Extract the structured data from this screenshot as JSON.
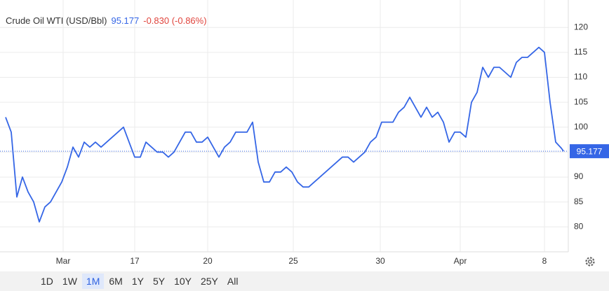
{
  "chart_data": {
    "type": "line",
    "title": "Crude Oil WTI (USD/Bbl)",
    "last_price": 95.177,
    "change_text": "-0.830 (-0.86%)",
    "color": "#3566e6",
    "x": [
      1,
      2,
      3,
      4,
      5,
      6,
      7,
      8,
      9,
      10,
      11,
      12,
      13,
      14,
      15,
      16,
      17,
      18,
      19,
      20,
      21,
      22,
      23,
      24,
      25,
      26,
      27,
      28,
      29,
      30,
      31,
      32,
      33,
      34,
      35,
      36,
      37,
      38,
      39,
      40,
      41,
      42,
      43,
      44,
      45,
      46,
      47,
      48,
      49,
      50,
      51,
      52,
      53,
      54,
      55,
      56,
      57,
      58,
      59,
      60,
      61,
      62,
      63,
      64,
      65,
      66,
      67,
      68,
      69,
      70,
      71,
      72,
      73,
      74,
      75,
      76,
      77,
      78,
      79,
      80,
      81,
      82,
      83,
      84,
      85,
      86,
      87,
      88,
      89,
      90,
      91,
      92,
      93,
      94,
      95,
      96,
      97,
      98,
      99,
      100,
      100.4
    ],
    "values": [
      102,
      99,
      86,
      90,
      87,
      85,
      81,
      84,
      85,
      87,
      89,
      92,
      96,
      94,
      97,
      96,
      97,
      96,
      97,
      98,
      99,
      100,
      97,
      94,
      94,
      97,
      96,
      95,
      95,
      94,
      95,
      97,
      99,
      99,
      97,
      97,
      98,
      96,
      94,
      96,
      97,
      99,
      99,
      99,
      101,
      93,
      89,
      89,
      91,
      91,
      92,
      91,
      89,
      88,
      88,
      89,
      90,
      91,
      92,
      93,
      94,
      94,
      93,
      94,
      95,
      97,
      98,
      101,
      101,
      101,
      103,
      104,
      106,
      104,
      102,
      104,
      102,
      103,
      101,
      97,
      99,
      99,
      98,
      105,
      107,
      112,
      110,
      112,
      112,
      111,
      110,
      113,
      114,
      114,
      115,
      116,
      115,
      105,
      97,
      95.8,
      95.177
    ],
    "xlim": [
      0,
      101.25
    ],
    "xticks": [
      {
        "value": 11.25,
        "label": "Mar"
      },
      {
        "value": 24,
        "label": "17"
      },
      {
        "value": 37,
        "label": "20"
      },
      {
        "value": 52.25,
        "label": "25"
      },
      {
        "value": 67.75,
        "label": "30"
      },
      {
        "value": 82,
        "label": "Apr"
      },
      {
        "value": 97,
        "label": "8"
      }
    ],
    "ylim": [
      75,
      125.5
    ],
    "yticks": [
      80,
      85,
      90,
      95,
      100,
      105,
      110,
      115,
      120
    ],
    "grid": true,
    "range_buttons": [
      "1D",
      "1W",
      "1M",
      "6M",
      "1Y",
      "5Y",
      "10Y",
      "25Y",
      "All"
    ],
    "selected_index": 2
  }
}
